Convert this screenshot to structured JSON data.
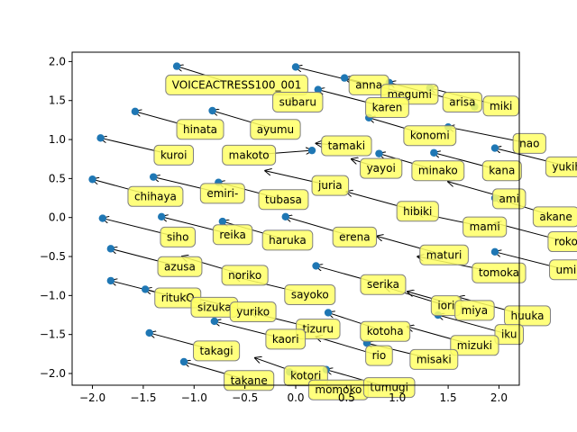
{
  "chart_data": {
    "type": "scatter",
    "title": "",
    "xlabel": "",
    "ylabel": "",
    "xlim": [
      -2.2,
      2.2
    ],
    "ylim": [
      -2.15,
      2.12
    ],
    "xticks": [
      -2.0,
      -1.5,
      -1.0,
      -0.5,
      0.0,
      0.5,
      1.0,
      1.5,
      2.0
    ],
    "yticks": [
      -2.0,
      -1.5,
      -1.0,
      -0.5,
      0.0,
      0.5,
      1.0,
      1.5,
      2.0
    ],
    "xtick_labels": [
      "−2.0",
      "−1.5",
      "−1.0",
      "−0.5",
      "0.0",
      "0.5",
      "1.0",
      "1.5",
      "2.0"
    ],
    "ytick_labels": [
      "−2.0",
      "−1.5",
      "−1.0",
      "−0.5",
      "0.0",
      "0.5",
      "1.0",
      "1.5",
      "2.0"
    ],
    "grid": false,
    "point_color": "#1f77b4",
    "label_box_color": "#ffff66",
    "label_box_border": "#808080",
    "points": [
      {
        "x": -1.17,
        "y": 1.94
      },
      {
        "x": 0.0,
        "y": 1.93
      },
      {
        "x": 0.48,
        "y": 1.79
      },
      {
        "x": 0.92,
        "y": 1.73
      },
      {
        "x": 1.32,
        "y": 1.66
      },
      {
        "x": 0.22,
        "y": 1.64
      },
      {
        "x": 1.76,
        "y": 1.42
      },
      {
        "x": 0.72,
        "y": 1.28
      },
      {
        "x": -1.58,
        "y": 1.36
      },
      {
        "x": -0.82,
        "y": 1.37
      },
      {
        "x": 1.5,
        "y": 1.16
      },
      {
        "x": 1.96,
        "y": 0.89
      },
      {
        "x": -1.92,
        "y": 1.02
      },
      {
        "x": 0.16,
        "y": 0.86
      },
      {
        "x": 1.36,
        "y": 0.83
      },
      {
        "x": 0.82,
        "y": 0.82
      },
      {
        "x": -1.4,
        "y": 0.52
      },
      {
        "x": -0.76,
        "y": 0.45
      },
      {
        "x": -2.0,
        "y": 0.49
      },
      {
        "x": 1.96,
        "y": 0.25
      },
      {
        "x": -1.9,
        "y": -0.01
      },
      {
        "x": -1.32,
        "y": 0.01
      },
      {
        "x": -0.72,
        "y": -0.05
      },
      {
        "x": -0.1,
        "y": 0.01
      },
      {
        "x": 1.96,
        "y": -0.44
      },
      {
        "x": -1.82,
        "y": -0.4
      },
      {
        "x": 0.2,
        "y": -0.62
      },
      {
        "x": -1.82,
        "y": -0.81
      },
      {
        "x": -1.48,
        "y": -0.92
      },
      {
        "x": -0.8,
        "y": -1.33
      },
      {
        "x": 0.32,
        "y": -1.22
      },
      {
        "x": 1.4,
        "y": -1.25
      },
      {
        "x": 0.7,
        "y": -1.61
      },
      {
        "x": -1.44,
        "y": -1.48
      },
      {
        "x": -1.1,
        "y": -1.85
      },
      {
        "x": -0.06,
        "y": -1.98
      },
      {
        "x": 0.3,
        "y": -1.95
      }
    ],
    "annotations": [
      {
        "text": "VOICEACTRESS100_001",
        "x": -0.58,
        "y": 1.7,
        "tx": -1.17,
        "ty": 1.94
      },
      {
        "text": "anna",
        "x": 0.72,
        "y": 1.7,
        "tx": 0.0,
        "ty": 1.93
      },
      {
        "text": "megumi",
        "x": 1.12,
        "y": 1.58,
        "tx": 0.48,
        "ty": 1.79
      },
      {
        "text": "arisa",
        "x": 1.64,
        "y": 1.48,
        "tx": 0.92,
        "ty": 1.73
      },
      {
        "text": "miki",
        "x": 2.02,
        "y": 1.43,
        "tx": 1.32,
        "ty": 1.66
      },
      {
        "text": "subaru",
        "x": 0.02,
        "y": 1.48,
        "tx": -0.1,
        "ty": 1.5
      },
      {
        "text": "karen",
        "x": 0.9,
        "y": 1.41,
        "tx": 0.22,
        "ty": 1.64
      },
      {
        "text": "konomi",
        "x": 1.32,
        "y": 1.05,
        "tx": 0.72,
        "ty": 1.28
      },
      {
        "text": "nao",
        "x": 2.3,
        "y": 0.95,
        "tx": 1.5,
        "ty": 1.16
      },
      {
        "text": "hinata",
        "x": -0.94,
        "y": 1.13,
        "tx": -1.58,
        "ty": 1.36
      },
      {
        "text": "ayumu",
        "x": -0.2,
        "y": 1.13,
        "tx": -0.82,
        "ty": 1.37
      },
      {
        "text": "tamaki",
        "x": 0.5,
        "y": 0.92,
        "tx": 0.2,
        "ty": 0.95
      },
      {
        "text": "yukiho",
        "x": 2.7,
        "y": 0.65,
        "tx": 1.96,
        "ty": 0.89
      },
      {
        "text": "kuroi",
        "x": -1.2,
        "y": 0.8,
        "tx": -1.92,
        "ty": 1.02
      },
      {
        "text": "makoto",
        "x": -0.46,
        "y": 0.8,
        "tx": 0.16,
        "ty": 0.86
      },
      {
        "text": "minako",
        "x": 1.4,
        "y": 0.6,
        "tx": 0.82,
        "ty": 0.82
      },
      {
        "text": "kana",
        "x": 2.03,
        "y": 0.6,
        "tx": 1.36,
        "ty": 0.83
      },
      {
        "text": "yayoi",
        "x": 0.84,
        "y": 0.63,
        "tx": 0.55,
        "ty": 0.75
      },
      {
        "text": "juria",
        "x": 0.34,
        "y": 0.41,
        "tx": -0.3,
        "ty": 0.6
      },
      {
        "text": "ami",
        "x": 2.1,
        "y": 0.24,
        "tx": 1.5,
        "ty": 0.46
      },
      {
        "text": "chihaya",
        "x": -1.38,
        "y": 0.27,
        "tx": -2.0,
        "ty": 0.49
      },
      {
        "text": "emiri-",
        "x": -0.72,
        "y": 0.31,
        "tx": -1.4,
        "ty": 0.52
      },
      {
        "text": "tubasa",
        "x": -0.12,
        "y": 0.23,
        "tx": -0.76,
        "ty": 0.45
      },
      {
        "text": "hibiki",
        "x": 1.2,
        "y": 0.08,
        "tx": 0.5,
        "ty": 0.33
      },
      {
        "text": "akane",
        "x": 2.56,
        "y": 0.01,
        "tx": 1.96,
        "ty": 0.25
      },
      {
        "text": "siho",
        "x": -1.16,
        "y": -0.25,
        "tx": -1.9,
        "ty": -0.01
      },
      {
        "text": "reika",
        "x": -0.62,
        "y": -0.22,
        "tx": -1.32,
        "ty": 0.01
      },
      {
        "text": "haruka",
        "x": -0.08,
        "y": -0.29,
        "tx": -0.72,
        "ty": -0.05
      },
      {
        "text": "erena",
        "x": 0.58,
        "y": -0.25,
        "tx": -0.1,
        "ty": 0.01
      },
      {
        "text": "mami",
        "x": 1.86,
        "y": -0.12,
        "tx": 1.2,
        "ty": 0.06
      },
      {
        "text": "roko",
        "x": 2.66,
        "y": -0.31,
        "tx": 1.96,
        "ty": -0.07
      },
      {
        "text": "maturi",
        "x": 1.46,
        "y": -0.48,
        "tx": 0.8,
        "ty": -0.24
      },
      {
        "text": "tomoka",
        "x": 2.0,
        "y": -0.71,
        "tx": 1.2,
        "ty": -0.5
      },
      {
        "text": "umi",
        "x": 2.66,
        "y": -0.67,
        "tx": 1.96,
        "ty": -0.44
      },
      {
        "text": "azusa",
        "x": -1.14,
        "y": -0.63,
        "tx": -1.82,
        "ty": -0.4
      },
      {
        "text": "noriko",
        "x": -0.5,
        "y": -0.74,
        "tx": -1.12,
        "ty": -0.5
      },
      {
        "text": "sayoko",
        "x": 0.14,
        "y": -0.99,
        "tx": -0.6,
        "ty": -0.76
      },
      {
        "text": "serika",
        "x": 0.86,
        "y": -0.86,
        "tx": 0.2,
        "ty": -0.62
      },
      {
        "text": "ritukO",
        "x": -1.16,
        "y": -1.03,
        "tx": -1.82,
        "ty": -0.81
      },
      {
        "text": "sizuka",
        "x": -0.8,
        "y": -1.15,
        "tx": -1.48,
        "ty": -0.92
      },
      {
        "text": "yuriko",
        "x": -0.42,
        "y": -1.21,
        "tx": -1.1,
        "ty": -1.0
      },
      {
        "text": "iori",
        "x": 1.48,
        "y": -1.13,
        "tx": 0.88,
        "ty": -0.89
      },
      {
        "text": "miya",
        "x": 1.76,
        "y": -1.19,
        "tx": 1.1,
        "ty": -0.95
      },
      {
        "text": "huuka",
        "x": 2.28,
        "y": -1.26,
        "tx": 1.6,
        "ty": -1.02
      },
      {
        "text": "tizuru",
        "x": 0.22,
        "y": -1.43,
        "tx": -0.44,
        "ty": -1.22
      },
      {
        "text": "kotoha",
        "x": 0.88,
        "y": -1.46,
        "tx": 0.32,
        "ty": -1.22
      },
      {
        "text": "iku",
        "x": 2.1,
        "y": -1.5,
        "tx": 1.4,
        "ty": -1.25
      },
      {
        "text": "kaori",
        "x": -0.1,
        "y": -1.56,
        "tx": -0.8,
        "ty": -1.33
      },
      {
        "text": "mizuki",
        "x": 1.76,
        "y": -1.64,
        "tx": 1.1,
        "ty": -1.4
      },
      {
        "text": "takagi",
        "x": -0.78,
        "y": -1.71,
        "tx": -1.44,
        "ty": -1.48
      },
      {
        "text": "rio",
        "x": 0.82,
        "y": -1.77,
        "tx": 0.2,
        "ty": -1.53
      },
      {
        "text": "misaki",
        "x": 1.36,
        "y": -1.82,
        "tx": 0.7,
        "ty": -1.61
      },
      {
        "text": "takane",
        "x": -0.46,
        "y": -2.09,
        "tx": -1.1,
        "ty": -1.85
      },
      {
        "text": "kotori",
        "x": 0.1,
        "y": -2.03,
        "tx": -0.4,
        "ty": -1.8
      },
      {
        "text": "momoko",
        "x": 0.42,
        "y": -2.21,
        "tx": -0.06,
        "ty": -1.98
      },
      {
        "text": "tumugi",
        "x": 0.92,
        "y": -2.18,
        "tx": 0.3,
        "ty": -1.95
      }
    ]
  }
}
